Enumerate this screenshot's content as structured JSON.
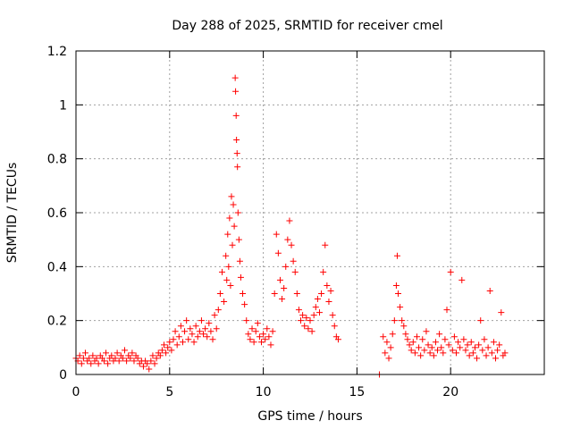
{
  "chart_data": {
    "type": "scatter",
    "title": "Day 288 of 2025, SRMTID for receiver cmel",
    "xlabel": "GPS time / hours",
    "ylabel": "SRMTID / TECUs",
    "xlim": [
      0,
      25
    ],
    "ylim": [
      0,
      1.2
    ],
    "xticks": [
      0,
      5,
      10,
      15,
      20
    ],
    "xtick_labels": [
      "0",
      "5",
      "10",
      "15",
      "20"
    ],
    "yticks": [
      0,
      0.2,
      0.4,
      0.6,
      0.8,
      1.0,
      1.2
    ],
    "ytick_labels": [
      "0",
      "0.2",
      "0.4",
      "0.6",
      "0.8",
      "1",
      "1.2"
    ],
    "grid": true,
    "marker": "plus",
    "series": [
      {
        "name": "SRMTID",
        "color": "#ff0000",
        "points": [
          [
            0.0,
            0.06
          ],
          [
            0.1,
            0.05
          ],
          [
            0.2,
            0.07
          ],
          [
            0.3,
            0.04
          ],
          [
            0.4,
            0.06
          ],
          [
            0.5,
            0.08
          ],
          [
            0.6,
            0.05
          ],
          [
            0.7,
            0.06
          ],
          [
            0.8,
            0.04
          ],
          [
            0.9,
            0.07
          ],
          [
            1.0,
            0.05
          ],
          [
            1.1,
            0.06
          ],
          [
            1.2,
            0.04
          ],
          [
            1.3,
            0.07
          ],
          [
            1.4,
            0.06
          ],
          [
            1.5,
            0.05
          ],
          [
            1.6,
            0.08
          ],
          [
            1.7,
            0.04
          ],
          [
            1.8,
            0.06
          ],
          [
            1.9,
            0.07
          ],
          [
            2.0,
            0.05
          ],
          [
            2.1,
            0.06
          ],
          [
            2.2,
            0.08
          ],
          [
            2.3,
            0.05
          ],
          [
            2.4,
            0.07
          ],
          [
            2.5,
            0.06
          ],
          [
            2.6,
            0.09
          ],
          [
            2.7,
            0.05
          ],
          [
            2.8,
            0.07
          ],
          [
            2.9,
            0.06
          ],
          [
            3.0,
            0.08
          ],
          [
            3.1,
            0.05
          ],
          [
            3.2,
            0.07
          ],
          [
            3.3,
            0.06
          ],
          [
            3.4,
            0.04
          ],
          [
            3.5,
            0.05
          ],
          [
            3.6,
            0.03
          ],
          [
            3.7,
            0.05
          ],
          [
            3.8,
            0.04
          ],
          [
            3.9,
            0.02
          ],
          [
            4.0,
            0.05
          ],
          [
            4.1,
            0.07
          ],
          [
            4.2,
            0.04
          ],
          [
            4.3,
            0.06
          ],
          [
            4.4,
            0.08
          ],
          [
            4.5,
            0.07
          ],
          [
            4.6,
            0.09
          ],
          [
            4.7,
            0.11
          ],
          [
            4.8,
            0.08
          ],
          [
            4.9,
            0.1
          ],
          [
            5.0,
            0.12
          ],
          [
            5.1,
            0.09
          ],
          [
            5.2,
            0.13
          ],
          [
            5.3,
            0.16
          ],
          [
            5.4,
            0.11
          ],
          [
            5.5,
            0.14
          ],
          [
            5.6,
            0.18
          ],
          [
            5.7,
            0.12
          ],
          [
            5.8,
            0.16
          ],
          [
            5.9,
            0.2
          ],
          [
            6.0,
            0.13
          ],
          [
            6.1,
            0.17
          ],
          [
            6.2,
            0.15
          ],
          [
            6.3,
            0.12
          ],
          [
            6.4,
            0.18
          ],
          [
            6.5,
            0.14
          ],
          [
            6.6,
            0.16
          ],
          [
            6.7,
            0.2
          ],
          [
            6.8,
            0.15
          ],
          [
            6.9,
            0.17
          ],
          [
            7.0,
            0.14
          ],
          [
            7.1,
            0.19
          ],
          [
            7.2,
            0.16
          ],
          [
            7.3,
            0.13
          ],
          [
            7.4,
            0.22
          ],
          [
            7.5,
            0.17
          ],
          [
            7.6,
            0.24
          ],
          [
            7.7,
            0.3
          ],
          [
            7.8,
            0.38
          ],
          [
            7.9,
            0.27
          ],
          [
            8.0,
            0.44
          ],
          [
            8.05,
            0.35
          ],
          [
            8.1,
            0.52
          ],
          [
            8.15,
            0.4
          ],
          [
            8.2,
            0.58
          ],
          [
            8.25,
            0.33
          ],
          [
            8.3,
            0.66
          ],
          [
            8.35,
            0.48
          ],
          [
            8.4,
            0.63
          ],
          [
            8.45,
            0.55
          ],
          [
            8.5,
            1.1
          ],
          [
            8.52,
            1.05
          ],
          [
            8.55,
            0.96
          ],
          [
            8.57,
            0.87
          ],
          [
            8.6,
            0.82
          ],
          [
            8.62,
            0.77
          ],
          [
            8.65,
            0.6
          ],
          [
            8.7,
            0.5
          ],
          [
            8.75,
            0.42
          ],
          [
            8.8,
            0.36
          ],
          [
            8.9,
            0.3
          ],
          [
            9.0,
            0.26
          ],
          [
            9.1,
            0.2
          ],
          [
            9.2,
            0.15
          ],
          [
            9.3,
            0.13
          ],
          [
            9.4,
            0.17
          ],
          [
            9.5,
            0.12
          ],
          [
            9.6,
            0.16
          ],
          [
            9.7,
            0.19
          ],
          [
            9.8,
            0.14
          ],
          [
            9.9,
            0.12
          ],
          [
            10.0,
            0.15
          ],
          [
            10.1,
            0.13
          ],
          [
            10.2,
            0.17
          ],
          [
            10.3,
            0.14
          ],
          [
            10.4,
            0.11
          ],
          [
            10.5,
            0.16
          ],
          [
            10.6,
            0.3
          ],
          [
            10.7,
            0.52
          ],
          [
            10.8,
            0.45
          ],
          [
            10.9,
            0.35
          ],
          [
            11.0,
            0.28
          ],
          [
            11.1,
            0.32
          ],
          [
            11.2,
            0.4
          ],
          [
            11.3,
            0.5
          ],
          [
            11.4,
            0.57
          ],
          [
            11.5,
            0.48
          ],
          [
            11.6,
            0.42
          ],
          [
            11.7,
            0.38
          ],
          [
            11.8,
            0.3
          ],
          [
            11.9,
            0.24
          ],
          [
            12.0,
            0.2
          ],
          [
            12.1,
            0.22
          ],
          [
            12.2,
            0.18
          ],
          [
            12.3,
            0.21
          ],
          [
            12.4,
            0.17
          ],
          [
            12.5,
            0.2
          ],
          [
            12.6,
            0.16
          ],
          [
            12.7,
            0.22
          ],
          [
            12.8,
            0.25
          ],
          [
            12.9,
            0.28
          ],
          [
            13.0,
            0.23
          ],
          [
            13.1,
            0.3
          ],
          [
            13.2,
            0.38
          ],
          [
            13.3,
            0.48
          ],
          [
            13.4,
            0.33
          ],
          [
            13.5,
            0.27
          ],
          [
            13.6,
            0.31
          ],
          [
            13.7,
            0.22
          ],
          [
            13.8,
            0.18
          ],
          [
            13.9,
            0.14
          ],
          [
            14.0,
            0.13
          ],
          [
            16.2,
            0.0
          ],
          [
            16.4,
            0.14
          ],
          [
            16.5,
            0.08
          ],
          [
            16.6,
            0.12
          ],
          [
            16.7,
            0.06
          ],
          [
            16.8,
            0.1
          ],
          [
            16.9,
            0.15
          ],
          [
            17.0,
            0.2
          ],
          [
            17.1,
            0.33
          ],
          [
            17.15,
            0.44
          ],
          [
            17.2,
            0.3
          ],
          [
            17.3,
            0.25
          ],
          [
            17.4,
            0.2
          ],
          [
            17.5,
            0.18
          ],
          [
            17.6,
            0.15
          ],
          [
            17.7,
            0.13
          ],
          [
            17.8,
            0.11
          ],
          [
            17.9,
            0.09
          ],
          [
            18.0,
            0.12
          ],
          [
            18.1,
            0.08
          ],
          [
            18.2,
            0.14
          ],
          [
            18.3,
            0.1
          ],
          [
            18.4,
            0.07
          ],
          [
            18.5,
            0.13
          ],
          [
            18.6,
            0.09
          ],
          [
            18.7,
            0.16
          ],
          [
            18.8,
            0.11
          ],
          [
            18.9,
            0.08
          ],
          [
            19.0,
            0.1
          ],
          [
            19.1,
            0.07
          ],
          [
            19.2,
            0.12
          ],
          [
            19.3,
            0.09
          ],
          [
            19.4,
            0.15
          ],
          [
            19.5,
            0.1
          ],
          [
            19.6,
            0.08
          ],
          [
            19.7,
            0.13
          ],
          [
            19.8,
            0.24
          ],
          [
            19.9,
            0.11
          ],
          [
            20.0,
            0.38
          ],
          [
            20.1,
            0.09
          ],
          [
            20.2,
            0.14
          ],
          [
            20.3,
            0.08
          ],
          [
            20.4,
            0.12
          ],
          [
            20.5,
            0.1
          ],
          [
            20.6,
            0.35
          ],
          [
            20.7,
            0.13
          ],
          [
            20.8,
            0.09
          ],
          [
            20.9,
            0.11
          ],
          [
            21.0,
            0.07
          ],
          [
            21.1,
            0.12
          ],
          [
            21.2,
            0.08
          ],
          [
            21.3,
            0.1
          ],
          [
            21.4,
            0.06
          ],
          [
            21.5,
            0.11
          ],
          [
            21.6,
            0.2
          ],
          [
            21.7,
            0.09
          ],
          [
            21.8,
            0.13
          ],
          [
            21.9,
            0.07
          ],
          [
            22.0,
            0.1
          ],
          [
            22.1,
            0.31
          ],
          [
            22.2,
            0.08
          ],
          [
            22.3,
            0.12
          ],
          [
            22.4,
            0.06
          ],
          [
            22.5,
            0.09
          ],
          [
            22.6,
            0.11
          ],
          [
            22.7,
            0.23
          ],
          [
            22.8,
            0.07
          ],
          [
            22.9,
            0.08
          ]
        ]
      }
    ]
  }
}
